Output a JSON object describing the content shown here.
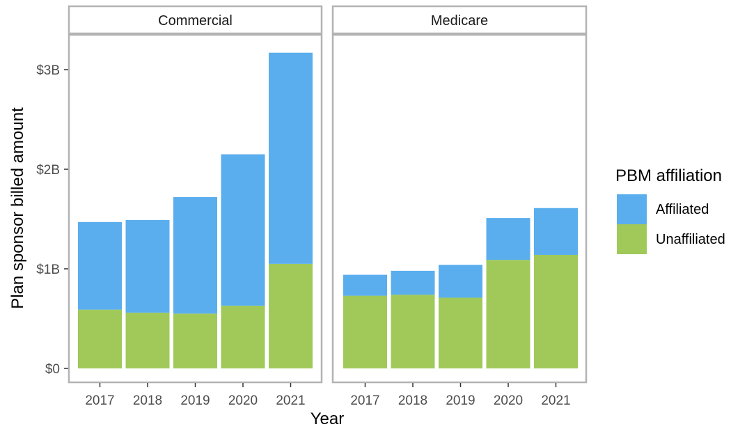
{
  "chart_data": {
    "type": "bar",
    "stacked": true,
    "ylabel": "Plan sponsor billed amount",
    "xlabel": "Year",
    "ylim": [
      0,
      3.4
    ],
    "y_ticks": [
      {
        "value": 0,
        "label": "$0"
      },
      {
        "value": 1,
        "label": "$1B"
      },
      {
        "value": 2,
        "label": "$2B"
      },
      {
        "value": 3,
        "label": "$3B"
      }
    ],
    "categories": [
      "2017",
      "2018",
      "2019",
      "2020",
      "2021"
    ],
    "grid": false,
    "legend": {
      "title": "PBM affiliation",
      "position": "right",
      "entries": [
        {
          "label": "Affiliated",
          "color": "#5aaeee"
        },
        {
          "label": "Unaffiliated",
          "color": "#a0c95a"
        }
      ]
    },
    "panels": [
      {
        "title": "Commercial",
        "series": [
          {
            "name": "Unaffiliated",
            "color": "#a0c95a",
            "values": [
              0.59,
              0.56,
              0.55,
              0.63,
              1.05
            ]
          },
          {
            "name": "Affiliated",
            "color": "#5aaeee",
            "values": [
              0.88,
              0.93,
              1.17,
              1.52,
              2.12
            ]
          }
        ]
      },
      {
        "title": "Medicare",
        "series": [
          {
            "name": "Unaffiliated",
            "color": "#a0c95a",
            "values": [
              0.73,
              0.74,
              0.71,
              1.09,
              1.14
            ]
          },
          {
            "name": "Affiliated",
            "color": "#5aaeee",
            "values": [
              0.21,
              0.24,
              0.33,
              0.42,
              0.47
            ]
          }
        ]
      }
    ]
  }
}
